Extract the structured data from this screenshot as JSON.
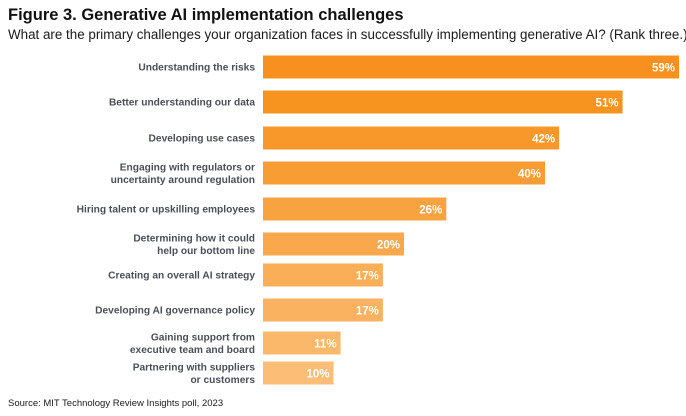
{
  "chart_data": {
    "type": "bar",
    "orientation": "horizontal",
    "title": "Figure 3. Generative AI implementation challenges",
    "subtitle": "What are the primary challenges your organization faces in successfully implementing generative AI? (Rank three.)",
    "categories": [
      [
        "Understanding the risks"
      ],
      [
        "Better understanding our data"
      ],
      [
        "Developing use cases"
      ],
      [
        "Engaging with regulators or",
        "uncertainty around regulation"
      ],
      [
        "Hiring talent or upskilling employees"
      ],
      [
        "Determining how it could",
        "help our bottom line"
      ],
      [
        "Creating an overall AI strategy"
      ],
      [
        "Developing AI governance policy"
      ],
      [
        "Gaining support from",
        "executive team and board"
      ],
      [
        "Partnering with suppliers",
        "or customers"
      ]
    ],
    "values": [
      59,
      51,
      42,
      40,
      26,
      20,
      17,
      17,
      11,
      10
    ],
    "value_labels": [
      "59%",
      "51%",
      "42%",
      "40%",
      "26%",
      "20%",
      "17%",
      "17%",
      "11%",
      "10%"
    ],
    "unit": "%",
    "xlim": [
      0,
      59
    ],
    "colors": [
      "#f7901e",
      "#f7941f",
      "#f8982a",
      "#f89d33",
      "#f9a340",
      "#f9a94c",
      "#faae57",
      "#fab261",
      "#fbb86b",
      "#fcbd76"
    ],
    "source": "Source: MIT Technology Review Insights poll, 2023"
  }
}
